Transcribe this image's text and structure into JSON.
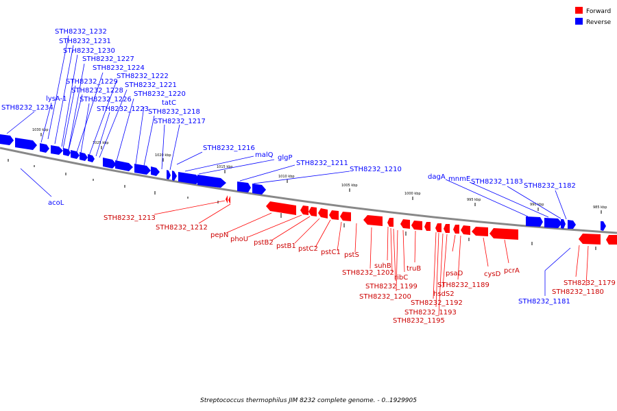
{
  "legend": [
    {
      "label": "Forward",
      "color": "#ff0000"
    },
    {
      "label": "Reverse",
      "color": "#0000ff"
    }
  ],
  "colors": {
    "forward": "#ff0000",
    "reverse": "#0000ff",
    "backbone": "#888888"
  },
  "caption": "Streptococcus thermophilus JIM 8232 complete genome. - 0..1929905",
  "ticks": [
    "1030 kbp",
    "1025 kbp",
    "1020 kbp",
    "1015 kbp",
    "1010 kbp",
    "1005 kbp",
    "1000 kbp",
    "995 kbp",
    "990 kbp",
    "985 kbp"
  ],
  "genes_reverse": [
    "STH8232_1234",
    "acoL",
    "lysA-1",
    "STH8232_1229",
    "STH8232_1228",
    "STH8232_1226",
    "STH8232_1232",
    "STH8232_1231",
    "STH8232_1230",
    "STH8232_1227",
    "STH8232_1224",
    "STH8232_1223",
    "STH8232_1222",
    "STH8232_1221",
    "STH8232_1220",
    "tatC",
    "STH8232_1218",
    "STH8232_1217",
    "STH8232_1216",
    "malQ",
    "glgP",
    "STH8232_1211",
    "STH8232_1210",
    "dagA",
    "mnmE",
    "STH8232_1183",
    "STH8232_1182",
    "STH8232_1181"
  ],
  "genes_forward": [
    "STH8232_1213",
    "STH8232_1212",
    "pepN",
    "phoU",
    "pstB2",
    "pstB1",
    "pstC2",
    "pstC1",
    "pstS",
    "suhB",
    "STH8232_1202",
    "ribC",
    "STH8232_1199",
    "truB",
    "STH8232_1200",
    "psaD",
    "hsdS2",
    "STH8232_1189",
    "STH8232_1192",
    "STH8232_1193",
    "STH8232_1195",
    "cysD",
    "pcrA",
    "STH8232_1179",
    "STH8232_1180"
  ]
}
